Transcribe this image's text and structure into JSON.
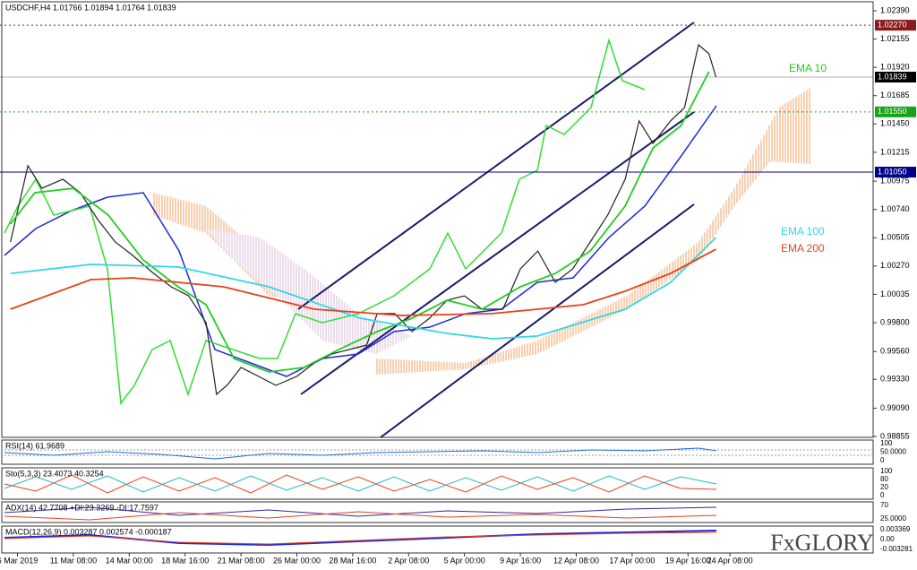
{
  "header": {
    "symbol_line": "USDCHF,H4  1.01766 1.01894 1.01764 1.01839"
  },
  "chart_data": {
    "type": "line",
    "xlim": [
      0,
      250
    ],
    "xticks": [
      {
        "value": 5,
        "label": "6 Mar 2019"
      },
      {
        "value": 21,
        "label": "11 Mar 08:00"
      },
      {
        "value": 37,
        "label": "14 Mar 00:00"
      },
      {
        "value": 53,
        "label": "18 Mar 16:00"
      },
      {
        "value": 69,
        "label": "21 Mar 08:00"
      },
      {
        "value": 85,
        "label": "26 Mar 00:00"
      },
      {
        "value": 101,
        "label": "28 Mar 16:00"
      },
      {
        "value": 117,
        "label": "2 Apr 08:00"
      },
      {
        "value": 133,
        "label": "5 Apr 00:00"
      },
      {
        "value": 149,
        "label": "9 Apr 16:00"
      },
      {
        "value": 165,
        "label": "12 Apr 08:00"
      },
      {
        "value": 181,
        "label": "17 Apr 00:00"
      },
      {
        "value": 197,
        "label": "19 Apr 16:00"
      },
      {
        "value": 209,
        "label": "24 Apr 08:00"
      }
    ],
    "ylim": [
      0.98855,
      1.0239
    ],
    "yticks": [
      {
        "value": 1.0239,
        "label": "1.02390"
      },
      1.02155,
      {
        "value": 1.0192,
        "label": "1.01920"
      },
      1.01685,
      {
        "value": 1.0145,
        "label": "1.01450"
      },
      1.01215,
      1.00975,
      {
        "value": 1.0074,
        "label": "1.00740"
      },
      1.00505,
      {
        "value": 1.0027,
        "label": "1.00270"
      },
      1.00035,
      {
        "value": 0.998,
        "label": "0.99800"
      },
      {
        "value": 0.9956,
        "label": "0.99560"
      },
      {
        "value": 0.9933,
        "label": "0.99330"
      },
      {
        "value": 0.9909,
        "label": "0.99090"
      },
      0.98855
    ],
    "levels": [
      {
        "value": 1.0227,
        "label": "1.02270",
        "color": "#8b1a1a"
      },
      {
        "value": 1.01839,
        "color": "#000000"
      },
      {
        "value": 1.0155,
        "label": "1.01550",
        "color": "#1aa31a"
      },
      {
        "value": 1.0105,
        "label": "1.01050",
        "color": "#00008b"
      }
    ],
    "series": [
      {
        "color": "#222222",
        "x": [
          3,
          8,
          12,
          18,
          23,
          28,
          33,
          38,
          44,
          49,
          54,
          59,
          62,
          65,
          69,
          74,
          79,
          85,
          90,
          95,
          100,
          105,
          108,
          113,
          118,
          123,
          128,
          133,
          138,
          144,
          149,
          154,
          159,
          164,
          169,
          174,
          179,
          183,
          187,
          192,
          196,
          200,
          203,
          205
        ],
        "values": [
          1.0047,
          1.01103,
          1.00916,
          1.00991,
          1.00879,
          1.00656,
          1.0047,
          1.00358,
          1.00209,
          1.00098,
          1.00023,
          0.998,
          0.99205,
          0.99279,
          0.99428,
          0.99354,
          0.99279,
          0.99354,
          0.99465,
          0.9954,
          0.99577,
          0.99614,
          0.99875,
          0.99875,
          0.99726,
          0.99837,
          0.99986,
          1.00023,
          0.99912,
          0.99912,
          1.00247,
          1.00395,
          1.00135,
          1.00247,
          1.0047,
          1.00693,
          1.00991,
          1.01475,
          1.01289,
          1.01475,
          1.01586,
          1.02107,
          1.02033,
          1.01839
        ]
      },
      {
        "name": "EMA 10",
        "color": "#22cc22",
        "x": [
          3,
          10,
          21,
          31,
          41,
          51,
          59,
          67,
          77,
          87,
          97,
          108,
          118,
          128,
          138,
          149,
          159,
          169,
          179,
          187,
          195,
          203
        ],
        "values": [
          1.00619,
          1.00879,
          1.00916,
          1.00693,
          1.00321,
          1.00098,
          0.99949,
          0.99502,
          0.99391,
          0.99428,
          0.99577,
          0.99726,
          0.99837,
          0.99986,
          0.99912,
          1.00098,
          1.00209,
          1.00395,
          1.00768,
          1.01251,
          1.01437,
          1.01884
        ]
      },
      {
        "name": "EMA 100",
        "color": "#33d6e6",
        "x": [
          3,
          26,
          51,
          77,
          103,
          128,
          141,
          154,
          179,
          192,
          205
        ],
        "values": [
          1.00209,
          1.00284,
          1.00262,
          1.00098,
          0.99837,
          0.99711,
          0.99666,
          0.99689,
          0.99912,
          1.00135,
          1.00507
        ]
      },
      {
        "name": "EMA 200",
        "color": "#e8401c",
        "x": [
          3,
          26,
          38,
          64,
          90,
          115,
          141,
          167,
          179,
          192,
          205
        ],
        "values": [
          0.99912,
          1.00157,
          1.00172,
          1.00098,
          0.99912,
          0.9986,
          0.99875,
          0.99949,
          1.00061,
          1.00209,
          1.0041
        ]
      }
    ]
  },
  "indicators": [
    {
      "label": "RSI(14) 61.9689",
      "ticks": [
        "100",
        "50.0000",
        "0"
      ]
    },
    {
      "label": "Sto(5,3,3) 23.4073 40.3254",
      "ticks": [
        "100",
        "80",
        "20",
        "0"
      ]
    },
    {
      "label": "ADX(14) 42.7708 +DI:23.3269 -DI:17.7597",
      "ticks": [
        "70",
        "25.0000"
      ]
    },
    {
      "label": "MACD(12,26,9) 0.003287 0.002574 -0.000187",
      "ticks": [
        "0.003369",
        "0.00",
        "-0.003281"
      ]
    }
  ],
  "brand": "FxGLORY"
}
